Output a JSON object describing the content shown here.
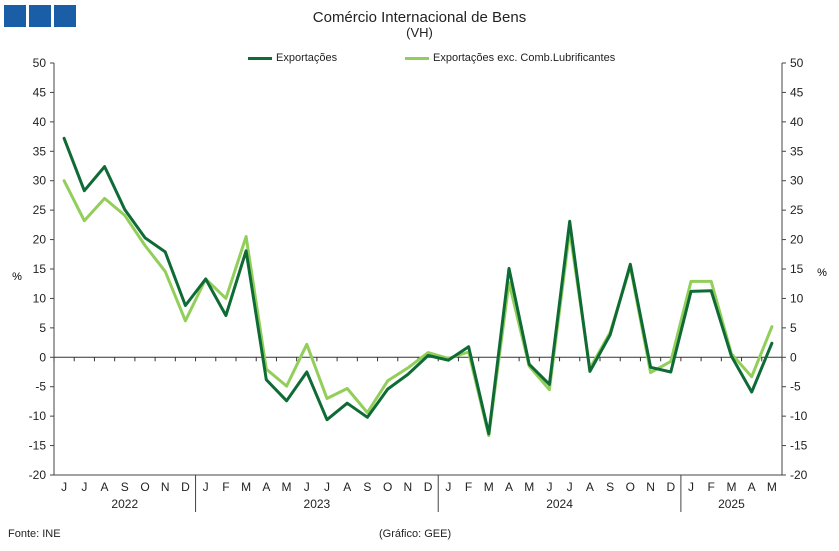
{
  "logo": {
    "name": "ine-logo"
  },
  "chart_data": {
    "type": "line",
    "title": "Comércio Internacional de Bens",
    "subtitle": "(VH)",
    "ylabel_left": "%",
    "ylabel_right": "%",
    "ylim": [
      -20,
      50
    ],
    "yticks": [
      50,
      45,
      40,
      35,
      30,
      25,
      20,
      15,
      10,
      5,
      0,
      -5,
      -10,
      -15,
      -20
    ],
    "grid": false,
    "legend_position": "top-center",
    "months": [
      "J",
      "J",
      "A",
      "S",
      "O",
      "N",
      "D",
      "J",
      "F",
      "M",
      "A",
      "M",
      "J",
      "J",
      "A",
      "S",
      "O",
      "N",
      "D",
      "J",
      "F",
      "M",
      "A",
      "M",
      "J",
      "J",
      "A",
      "S",
      "O",
      "N",
      "D",
      "J",
      "F",
      "M",
      "A",
      "M"
    ],
    "years": [
      {
        "label": "2022",
        "start": 0,
        "end": 6
      },
      {
        "label": "2023",
        "start": 7,
        "end": 18
      },
      {
        "label": "2024",
        "start": 19,
        "end": 30
      },
      {
        "label": "2025",
        "start": 31,
        "end": 35
      }
    ],
    "series": [
      {
        "name": "Exportações",
        "color": "#0f6b35",
        "values": [
          37.2,
          28.3,
          32.4,
          25.1,
          20.3,
          17.9,
          8.8,
          13.3,
          7.1,
          18.1,
          -3.8,
          -7.4,
          -2.5,
          -10.6,
          -7.8,
          -10.2,
          -5.4,
          -2.9,
          0.3,
          -0.5,
          1.8,
          -13.0,
          15.1,
          -1.2,
          -4.6,
          23.1,
          -2.4,
          3.8,
          15.8,
          -1.7,
          -2.5,
          11.2,
          11.3,
          0.2,
          -5.9,
          2.4
        ]
      },
      {
        "name": "Exportações exc. Comb.Lubrificantes",
        "color": "#92cf5a",
        "values": [
          30.0,
          23.2,
          27.0,
          24.1,
          19.0,
          14.6,
          6.2,
          13.3,
          10.0,
          20.5,
          -2.0,
          -4.9,
          2.2,
          -7.0,
          -5.3,
          -9.4,
          -4.0,
          -1.8,
          0.8,
          -0.2,
          0.9,
          -13.3,
          12.7,
          -1.5,
          -5.5,
          21.5,
          -1.9,
          4.2,
          15.4,
          -2.6,
          -0.7,
          12.9,
          12.9,
          0.6,
          -3.3,
          5.2
        ]
      }
    ]
  },
  "footer": {
    "source": "Fonte: INE",
    "credit": "(Gráfico: GEE)"
  }
}
